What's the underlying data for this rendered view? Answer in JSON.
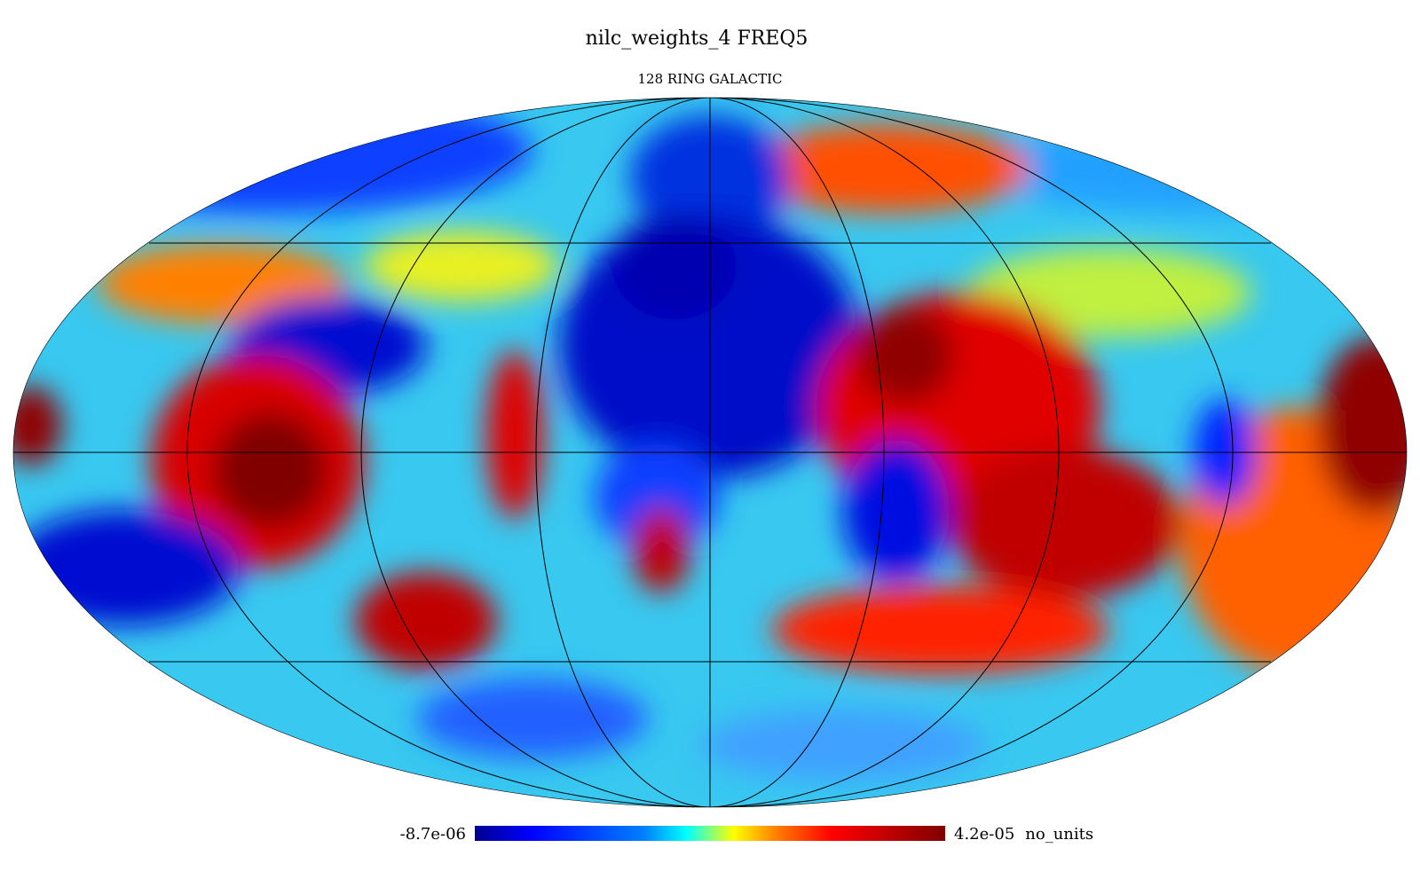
{
  "title": "nilc_weights_4   FREQ5",
  "subtitle": "128 RING GALACTIC",
  "colorbar": {
    "min": {
      "value": -8.7e-06,
      "label": "-8.7e-06"
    },
    "max": {
      "value": 4.2e-05,
      "label": "4.2e-05"
    },
    "unit": "no_units"
  }
}
